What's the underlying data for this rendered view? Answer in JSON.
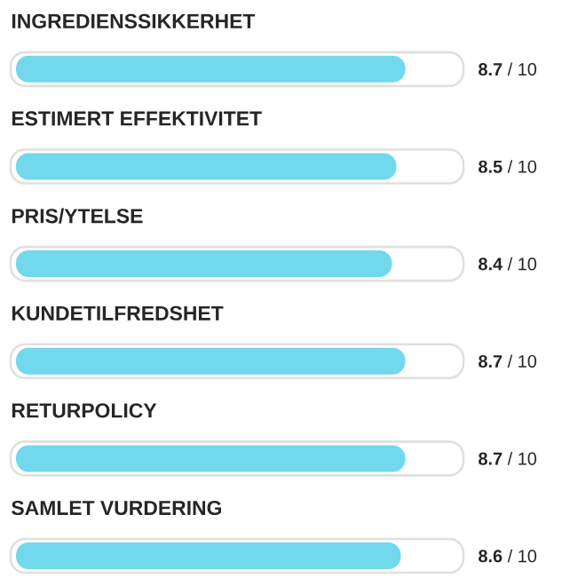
{
  "chart_data": {
    "type": "bar",
    "orientation": "horizontal",
    "categories": [
      "INGREDIENSSIKKERHET",
      "ESTIMERT EFFEKTIVITET",
      "PRIS/YTELSE",
      "KUNDETILFREDSHET",
      "RETURPOLICY",
      "SAMLET VURDERING"
    ],
    "values": [
      8.7,
      8.5,
      8.4,
      8.7,
      8.7,
      8.6
    ],
    "value_labels": [
      "**8.7** / 10",
      "**8.5** / 10",
      "**8.4** / 10",
      "**8.7** / 10",
      "**8.7** / 10",
      "**8.6** / 10"
    ],
    "color": "#72d8ec",
    "xlim": [
      0,
      10
    ]
  }
}
